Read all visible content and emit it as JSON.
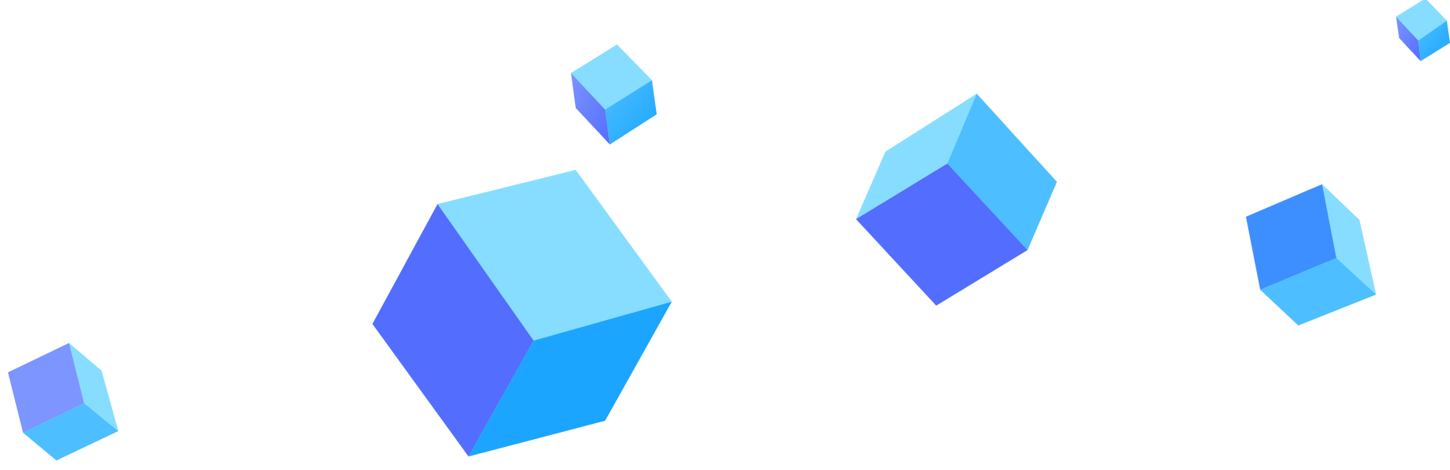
{
  "colors": {
    "background": "#ffffff",
    "light_cyan": "#87DDFF",
    "sky_blue": "#4DBEFF",
    "bright_blue": "#1CA5FF",
    "royal_blue": "#3D8FFF",
    "indigo": "#536DFF",
    "periwinkle": "#7C95FF"
  },
  "shapes": [
    {
      "name": "large-cube-center",
      "type": "cube-icon"
    },
    {
      "name": "cube-small-top",
      "type": "cube-icon"
    },
    {
      "name": "cube-right-middle",
      "type": "cube-icon"
    },
    {
      "name": "cube-far-right",
      "type": "cube-icon"
    },
    {
      "name": "cube-top-right-tiny",
      "type": "cube-icon"
    },
    {
      "name": "cube-bottom-left",
      "type": "cube-icon"
    }
  ]
}
